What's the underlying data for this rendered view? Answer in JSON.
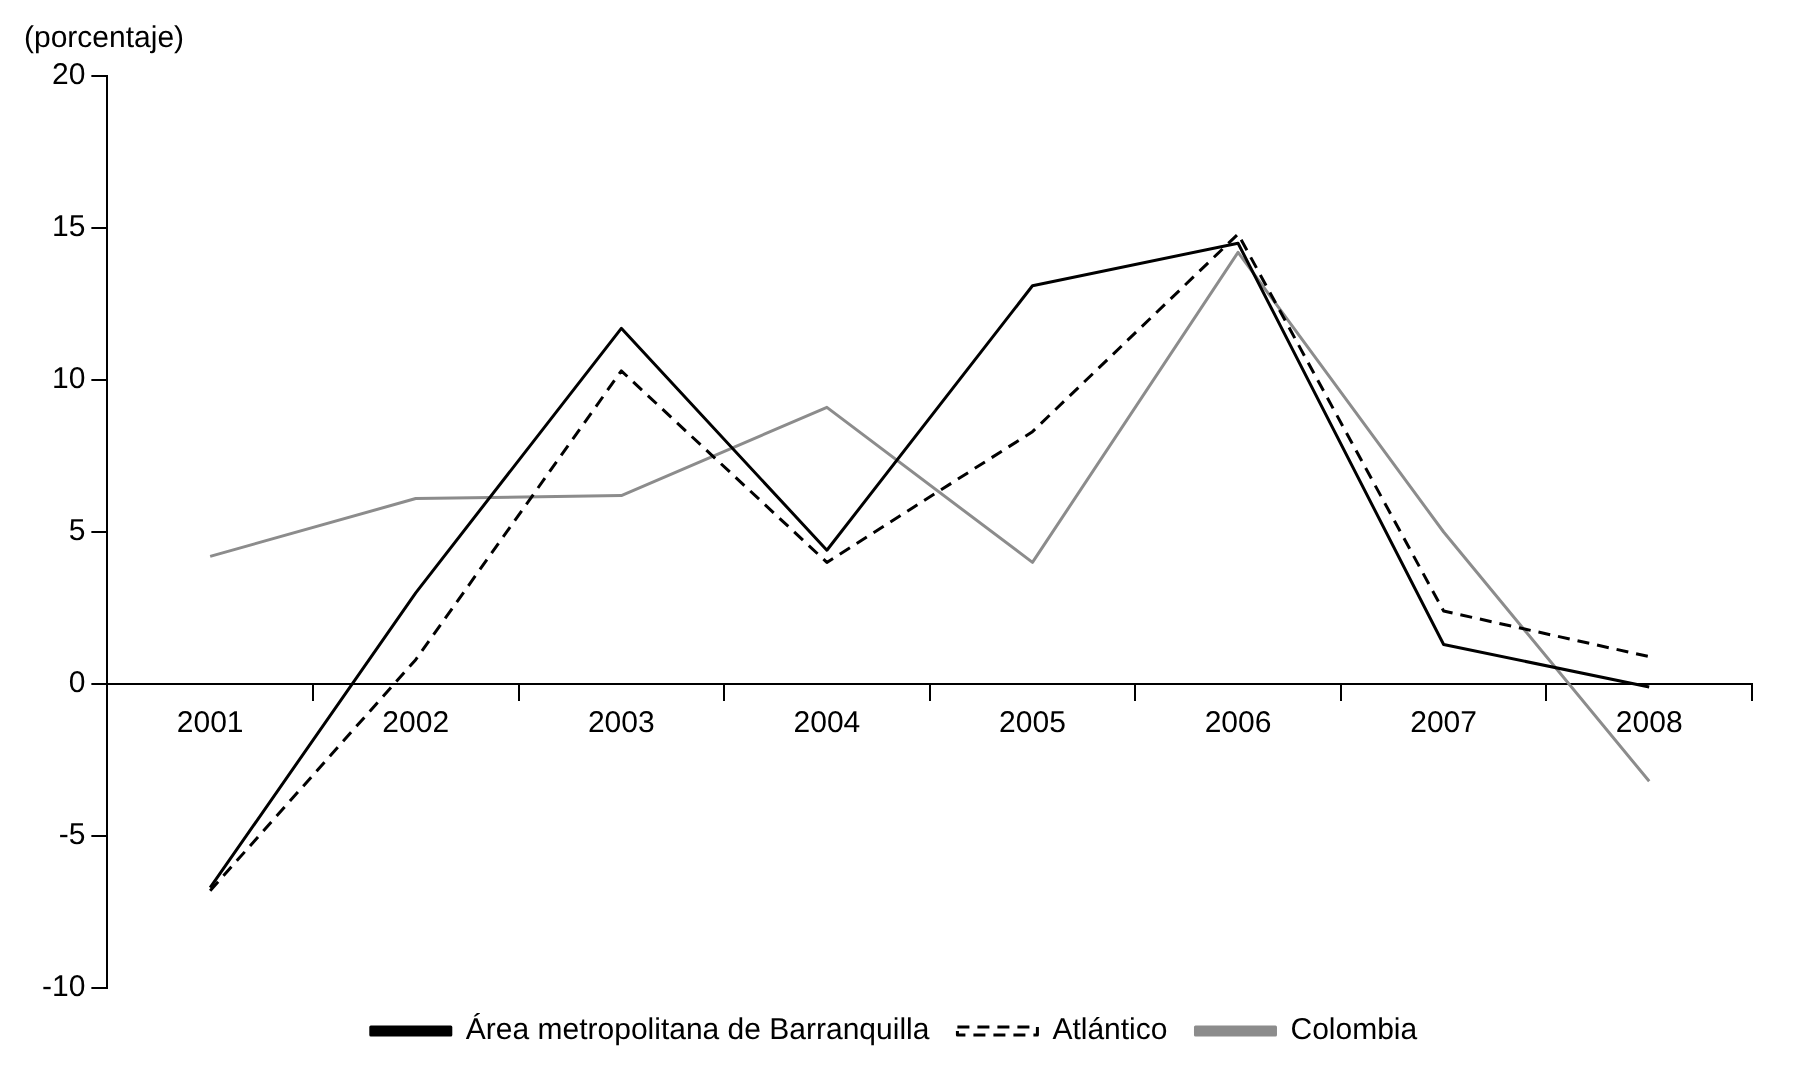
{
  "chart_data": {
    "type": "line",
    "ylabel": "(porcentaje)",
    "categories": [
      "2001",
      "2002",
      "2003",
      "2004",
      "2005",
      "2006",
      "2007",
      "2008"
    ],
    "series": [
      {
        "name": "Área metropolitana de Barranquilla",
        "color": "#000000",
        "line_style": "solid",
        "values": [
          -6.7,
          3.0,
          11.7,
          4.4,
          13.1,
          14.5,
          1.3,
          -0.1
        ]
      },
      {
        "name": "Atlántico",
        "color": "#000000",
        "line_style": "dashed",
        "values": [
          -6.8,
          0.8,
          10.3,
          4.0,
          8.3,
          14.8,
          2.4,
          0.9
        ]
      },
      {
        "name": "Colombia",
        "color": "#8c8c8c",
        "line_style": "solid",
        "values": [
          4.2,
          6.1,
          6.2,
          9.1,
          4.0,
          14.2,
          5.0,
          -3.2
        ]
      }
    ],
    "ylim": [
      -10,
      20
    ],
    "yticks": [
      -10,
      -5,
      0,
      5,
      10,
      15,
      20
    ],
    "grid": false,
    "legend": "bottom",
    "marker": "none"
  }
}
